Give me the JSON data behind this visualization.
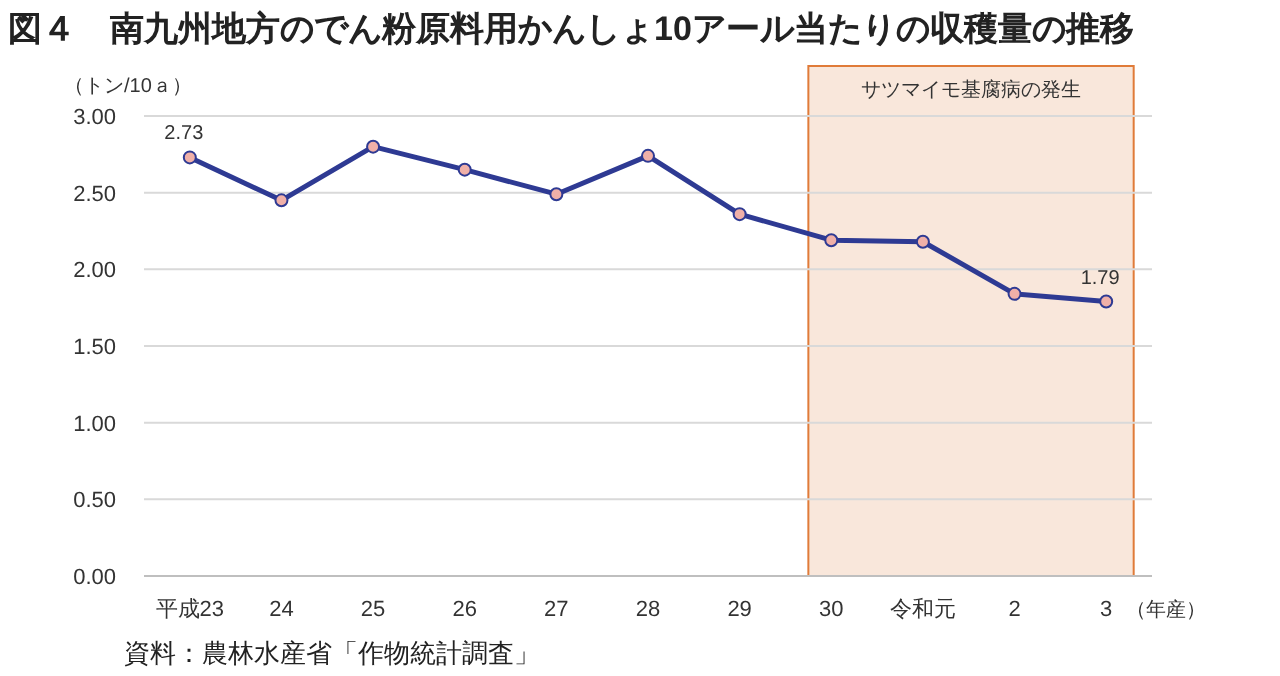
{
  "chart_data": {
    "type": "line",
    "title": "図４　南九州地方のでん粉原料用かんしょ10アール当たりの収穫量の推移",
    "ylabel": "（トン/10ａ）",
    "xlabel": "（年産）",
    "categories": [
      "平成23",
      "24",
      "25",
      "26",
      "27",
      "28",
      "29",
      "30",
      "令和元",
      "2",
      "3"
    ],
    "series": [
      {
        "color": "#2e3a93",
        "values": [
          2.73,
          2.45,
          2.8,
          2.65,
          2.49,
          2.74,
          2.36,
          2.19,
          2.18,
          1.84,
          1.79
        ],
        "value_labels": [
          "2.73",
          null,
          null,
          null,
          null,
          null,
          null,
          null,
          null,
          null,
          "1.79"
        ]
      }
    ],
    "ylim": [
      0,
      3
    ],
    "yticks": [
      {
        "value": 0,
        "label": "0.00"
      },
      {
        "value": 0.5,
        "label": "0.50"
      },
      {
        "value": 1,
        "label": "1.00"
      },
      {
        "value": 1.5,
        "label": "1.50"
      },
      {
        "value": 2,
        "label": "2.00"
      },
      {
        "value": 2.5,
        "label": "2.50"
      },
      {
        "value": 3,
        "label": "3.00"
      }
    ],
    "grid": "y",
    "marker": "circle",
    "line_style": "solid",
    "bands": [
      {
        "axis": "x",
        "from": "30",
        "to": "3",
        "label": "サツマイモ基腐病の発生",
        "color": "#e07b39"
      }
    ],
    "annotations": [
      "資料：農林水産省「作物統計調査」"
    ]
  }
}
